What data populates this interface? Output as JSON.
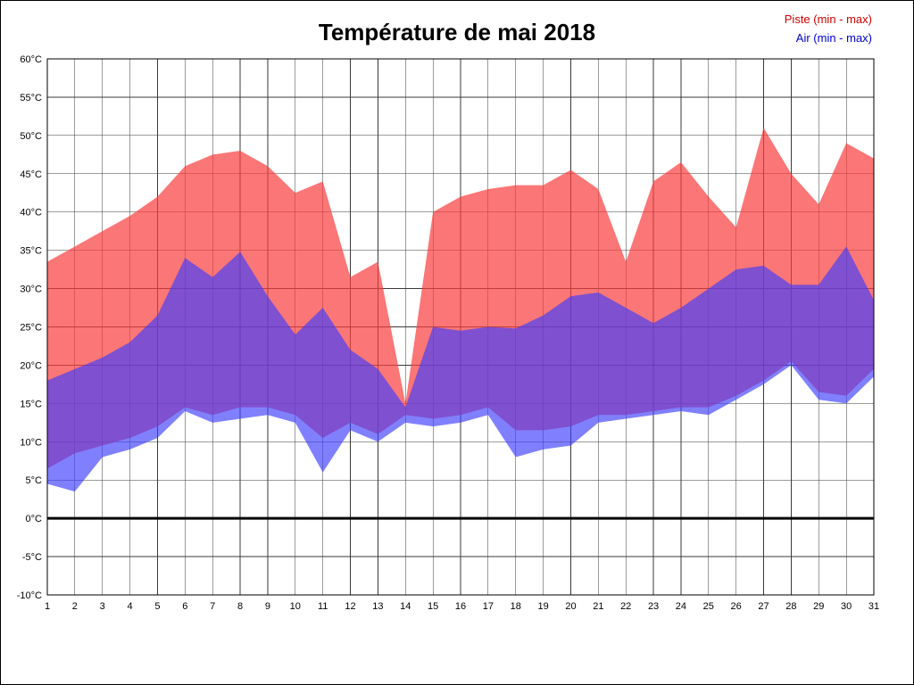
{
  "page": {
    "background": "#ffffff",
    "border_color": "#000000"
  },
  "chart_data": {
    "type": "area",
    "title": "Température de mai 2018",
    "x": [
      1,
      2,
      3,
      4,
      5,
      6,
      7,
      8,
      9,
      10,
      11,
      12,
      13,
      14,
      15,
      16,
      17,
      18,
      19,
      20,
      21,
      22,
      23,
      24,
      25,
      26,
      27,
      28,
      29,
      30,
      31
    ],
    "xlabel": "",
    "ylabel": "",
    "ylim": [
      -10,
      60
    ],
    "ytick_step": 5,
    "ytick_suffix": "°C",
    "grid": true,
    "grid_color": "#3a3a3a",
    "zero_line": true,
    "zero_line_color": "#000000",
    "legend_position": "top-right",
    "series": [
      {
        "name": "Piste (min - max)",
        "label_color": "#cc0000",
        "fill": "rgba(250,60,60,0.70)",
        "max": [
          33.5,
          35.5,
          37.5,
          39.5,
          42,
          46,
          47.5,
          48,
          46,
          42.5,
          44,
          31.5,
          33.5,
          15,
          40,
          42,
          43,
          43.5,
          43.5,
          45.5,
          43,
          33.5,
          44,
          46.5,
          42,
          38,
          51,
          45,
          41,
          49,
          47
        ],
        "min": [
          6.5,
          8.5,
          9.5,
          10.5,
          12,
          14.5,
          13.5,
          14.5,
          14.5,
          13.5,
          10.5,
          12.5,
          11,
          13.5,
          13,
          13.5,
          14.5,
          11.5,
          11.5,
          12,
          13.5,
          13.5,
          14,
          14.5,
          14.5,
          16,
          18,
          20.5,
          16.5,
          16,
          19.5
        ]
      },
      {
        "name": "Air (min - max)",
        "label_color": "#0000cc",
        "fill": "rgba(60,60,255,0.65)",
        "max": [
          18,
          19.5,
          21,
          23,
          26.5,
          34,
          31.5,
          34.8,
          29,
          24,
          27.5,
          22,
          19.5,
          14.5,
          25,
          24.5,
          25,
          24.8,
          26.5,
          29,
          29.5,
          27.5,
          25.5,
          27.5,
          30,
          32.5,
          33,
          30.5,
          30.5,
          35.5,
          28.5
        ],
        "min": [
          4.5,
          3.5,
          8,
          9,
          10.5,
          14,
          12.5,
          13,
          13.5,
          12.5,
          6,
          11.5,
          10,
          12.5,
          12,
          12.5,
          13.5,
          8,
          9,
          9.5,
          12.5,
          13,
          13.5,
          14,
          13.5,
          15.5,
          17.5,
          20,
          15.5,
          15,
          18.5
        ]
      }
    ]
  }
}
